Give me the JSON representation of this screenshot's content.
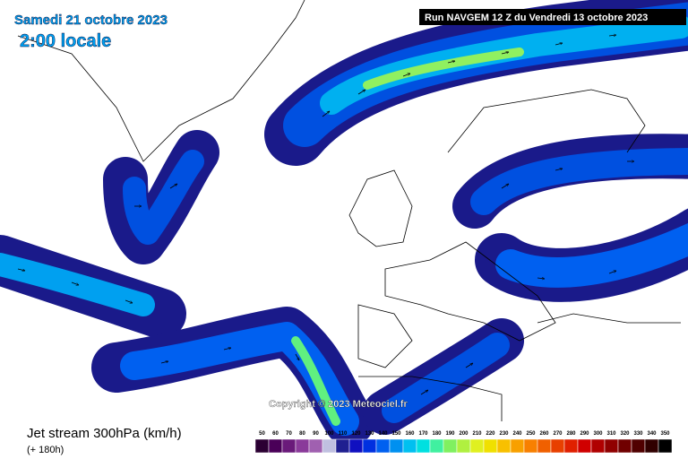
{
  "header": {
    "date": "Samedi 21 octobre 2023",
    "time": "2:00 locale",
    "run": "Run NAVGEM 12 Z du Vendredi 13 octobre 2023"
  },
  "copyright": "Copyright © 2023 Meteociel.fr",
  "footer": {
    "title": "Jet stream 300hPa (km/h)",
    "subtitle": "(+ 180h)"
  },
  "legend": {
    "labels": [
      50,
      60,
      70,
      80,
      90,
      100,
      110,
      120,
      130,
      140,
      150,
      160,
      170,
      180,
      190,
      200,
      210,
      220,
      230,
      240,
      250,
      260,
      270,
      280,
      290,
      300,
      310,
      320,
      330,
      340,
      350
    ],
    "colors": [
      "#2b0033",
      "#4a0058",
      "#6a1a7a",
      "#8a3a9a",
      "#a060b0",
      "#c0c0e0",
      "#202090",
      "#1010c0",
      "#0030e0",
      "#0060f0",
      "#0090f0",
      "#00c0f0",
      "#00e0e0",
      "#40f0a0",
      "#80f060",
      "#b0f040",
      "#e0f020",
      "#f0e000",
      "#f8c000",
      "#f8a000",
      "#f88000",
      "#f06000",
      "#e84000",
      "#e02000",
      "#d00000",
      "#b00000",
      "#900000",
      "#700000",
      "#500000",
      "#300000",
      "#000000"
    ]
  }
}
